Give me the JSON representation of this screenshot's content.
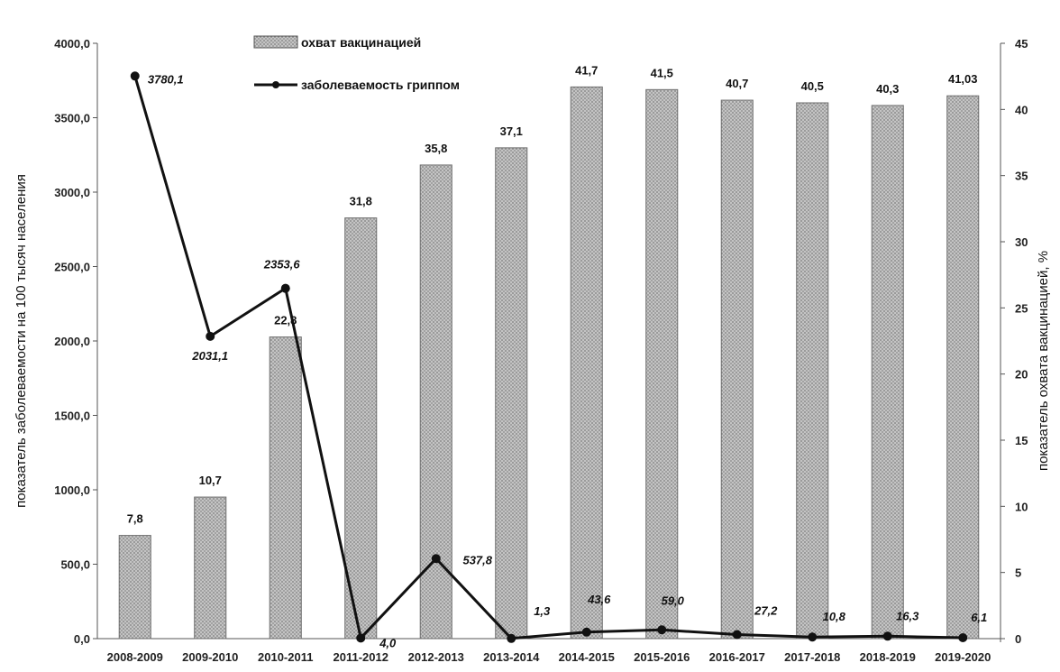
{
  "chart_data": {
    "type": "bar+line",
    "categories": [
      "2008-2009",
      "2009-2010",
      "2010-2011",
      "2011-2012",
      "2012-2013",
      "2013-2014",
      "2014-2015",
      "2015-2016",
      "2016-2017",
      "2017-2018",
      "2018-2019",
      "2019-2020"
    ],
    "series": [
      {
        "name": "охват вакцинацией",
        "type": "bar",
        "axis": "right",
        "values": [
          7.8,
          10.7,
          22.8,
          31.8,
          35.8,
          37.1,
          41.7,
          41.5,
          40.7,
          40.5,
          40.3,
          41.03
        ],
        "labels": [
          "7,8",
          "10,7",
          "22,8",
          "31,8",
          "35,8",
          "37,1",
          "41,7",
          "41,5",
          "40,7",
          "40,5",
          "40,3",
          "41,03"
        ]
      },
      {
        "name": "заболеваемость гриппом",
        "type": "line",
        "axis": "left",
        "values": [
          3780.1,
          2031.1,
          2353.6,
          4.0,
          537.8,
          1.3,
          43.6,
          59.0,
          27.2,
          10.8,
          16.3,
          6.1
        ],
        "labels": [
          "3780,1",
          "2031,1",
          "2353,6",
          "4,0",
          "537,8",
          "1,3",
          "43,6",
          "59,0",
          "27,2",
          "10,8",
          "16,3",
          "6,1"
        ]
      }
    ],
    "ylabel": "показатель заболеваемости на 100 тысяч населения",
    "y2label": "показатель охвата вакцинацией, %",
    "ylim": [
      0,
      4000
    ],
    "y2lim": [
      0,
      45
    ],
    "yticks": [
      "0,0",
      "500,0",
      "1000,0",
      "1500,0",
      "2000,0",
      "2500,0",
      "3000,0",
      "3500,0",
      "4000,0"
    ],
    "y2ticks": [
      "0",
      "5",
      "10",
      "15",
      "20",
      "25",
      "30",
      "35",
      "40",
      "45"
    ],
    "grid": false,
    "legend": "top-center",
    "colors": {
      "bar": "#b5b5b5",
      "bar_edge": "#6e6e6e",
      "line": "#111111"
    }
  }
}
